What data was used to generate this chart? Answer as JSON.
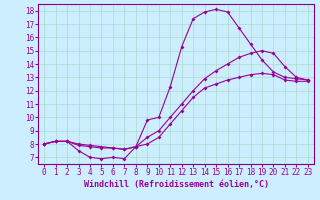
{
  "title": "",
  "xlabel": "Windchill (Refroidissement éolien,°C)",
  "ylabel": "",
  "background_color": "#cceeff",
  "line_color": "#990099",
  "xlim": [
    -0.5,
    23.5
  ],
  "ylim": [
    6.5,
    18.5
  ],
  "xticks": [
    0,
    1,
    2,
    3,
    4,
    5,
    6,
    7,
    8,
    9,
    10,
    11,
    12,
    13,
    14,
    15,
    16,
    17,
    18,
    19,
    20,
    21,
    22,
    23
  ],
  "yticks": [
    7,
    8,
    9,
    10,
    11,
    12,
    13,
    14,
    15,
    16,
    17,
    18
  ],
  "line1_x": [
    0,
    1,
    2,
    3,
    4,
    5,
    6,
    7,
    8,
    9,
    10,
    11,
    12,
    13,
    14,
    15,
    16,
    17,
    18,
    19,
    20,
    21,
    22,
    23
  ],
  "line1_y": [
    8.0,
    8.2,
    8.2,
    7.5,
    7.0,
    6.9,
    7.0,
    6.9,
    7.8,
    9.8,
    10.0,
    12.3,
    15.3,
    17.4,
    17.9,
    18.1,
    17.9,
    16.7,
    15.5,
    14.3,
    13.4,
    13.0,
    12.9,
    12.8
  ],
  "line2_x": [
    0,
    1,
    2,
    3,
    4,
    5,
    6,
    7,
    8,
    9,
    10,
    11,
    12,
    13,
    14,
    15,
    16,
    17,
    18,
    19,
    20,
    21,
    22,
    23
  ],
  "line2_y": [
    8.0,
    8.2,
    8.2,
    7.9,
    7.8,
    7.7,
    7.7,
    7.6,
    7.8,
    8.5,
    9.0,
    10.0,
    11.0,
    12.0,
    12.9,
    13.5,
    14.0,
    14.5,
    14.8,
    15.0,
    14.8,
    13.8,
    13.0,
    12.8
  ],
  "line3_x": [
    0,
    1,
    2,
    3,
    4,
    5,
    6,
    7,
    8,
    9,
    10,
    11,
    12,
    13,
    14,
    15,
    16,
    17,
    18,
    19,
    20,
    21,
    22,
    23
  ],
  "line3_y": [
    8.0,
    8.2,
    8.2,
    8.0,
    7.9,
    7.8,
    7.7,
    7.6,
    7.8,
    8.0,
    8.5,
    9.5,
    10.5,
    11.5,
    12.2,
    12.5,
    12.8,
    13.0,
    13.2,
    13.3,
    13.2,
    12.8,
    12.7,
    12.7
  ],
  "grid_color": "#aaddcc",
  "marker": "D",
  "markersize": 2,
  "linewidth": 0.8,
  "xlabel_fontsize": 6,
  "tick_fontsize": 5.5,
  "spine_color": "#800080"
}
